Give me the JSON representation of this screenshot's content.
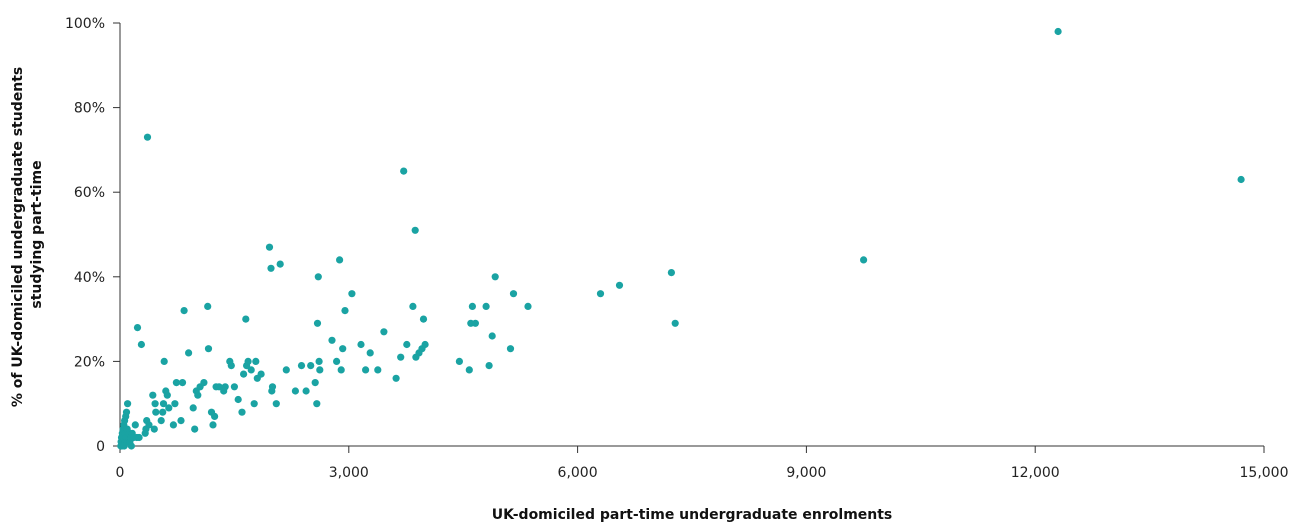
{
  "chart_data": {
    "type": "scatter",
    "title": "",
    "xlabel": "UK-domiciled part-time undergraduate enrolments",
    "ylabel_lines": [
      "% of UK-domiciled undergraduate students",
      "studying part-time"
    ],
    "xlim": [
      0,
      15000
    ],
    "ylim": [
      0,
      100
    ],
    "x_ticks": [
      0,
      3000,
      6000,
      9000,
      12000,
      15000
    ],
    "x_tick_labels": [
      "0",
      "3,000",
      "6,000",
      "9,000",
      "12,000",
      "15,000"
    ],
    "y_ticks": [
      0,
      20,
      40,
      60,
      80,
      100
    ],
    "y_tick_labels": [
      "0",
      "20%",
      "40%",
      "60%",
      "80%",
      "100%"
    ],
    "grid": false,
    "marker_color": "#1aa3a3",
    "series": [
      {
        "points": [
          [
            10,
            0
          ],
          [
            15,
            1
          ],
          [
            20,
            2
          ],
          [
            25,
            0
          ],
          [
            30,
            3
          ],
          [
            35,
            1
          ],
          [
            40,
            4
          ],
          [
            45,
            2
          ],
          [
            50,
            5
          ],
          [
            55,
            0
          ],
          [
            60,
            6
          ],
          [
            65,
            1
          ],
          [
            70,
            3
          ],
          [
            75,
            7
          ],
          [
            80,
            2
          ],
          [
            85,
            8
          ],
          [
            90,
            1
          ],
          [
            95,
            4
          ],
          [
            100,
            10
          ],
          [
            110,
            2
          ],
          [
            120,
            3
          ],
          [
            130,
            1
          ],
          [
            140,
            2
          ],
          [
            150,
            0
          ],
          [
            160,
            3
          ],
          [
            180,
            2
          ],
          [
            200,
            5
          ],
          [
            220,
            2
          ],
          [
            230,
            28
          ],
          [
            250,
            2
          ],
          [
            280,
            24
          ],
          [
            330,
            3
          ],
          [
            340,
            4
          ],
          [
            350,
            6
          ],
          [
            360,
            73
          ],
          [
            380,
            5
          ],
          [
            430,
            12
          ],
          [
            450,
            4
          ],
          [
            460,
            10
          ],
          [
            470,
            8
          ],
          [
            540,
            6
          ],
          [
            560,
            8
          ],
          [
            570,
            10
          ],
          [
            580,
            20
          ],
          [
            600,
            13
          ],
          [
            620,
            12
          ],
          [
            640,
            9
          ],
          [
            700,
            5
          ],
          [
            720,
            10
          ],
          [
            740,
            15
          ],
          [
            800,
            6
          ],
          [
            820,
            15
          ],
          [
            840,
            32
          ],
          [
            900,
            22
          ],
          [
            960,
            9
          ],
          [
            980,
            4
          ],
          [
            1000,
            13
          ],
          [
            1020,
            12
          ],
          [
            1050,
            14
          ],
          [
            1100,
            15
          ],
          [
            1150,
            33
          ],
          [
            1160,
            23
          ],
          [
            1200,
            8
          ],
          [
            1220,
            5
          ],
          [
            1240,
            7
          ],
          [
            1260,
            14
          ],
          [
            1300,
            14
          ],
          [
            1360,
            13
          ],
          [
            1380,
            14
          ],
          [
            1440,
            20
          ],
          [
            1460,
            19
          ],
          [
            1500,
            14
          ],
          [
            1550,
            11
          ],
          [
            1600,
            8
          ],
          [
            1620,
            17
          ],
          [
            1650,
            30
          ],
          [
            1660,
            19
          ],
          [
            1680,
            20
          ],
          [
            1720,
            18
          ],
          [
            1760,
            10
          ],
          [
            1780,
            20
          ],
          [
            1800,
            16
          ],
          [
            1850,
            17
          ],
          [
            1960,
            47
          ],
          [
            1980,
            42
          ],
          [
            1990,
            13
          ],
          [
            2000,
            14
          ],
          [
            2050,
            10
          ],
          [
            2100,
            43
          ],
          [
            2180,
            18
          ],
          [
            2300,
            13
          ],
          [
            2380,
            19
          ],
          [
            2440,
            13
          ],
          [
            2500,
            19
          ],
          [
            2560,
            15
          ],
          [
            2580,
            10
          ],
          [
            2590,
            29
          ],
          [
            2600,
            40
          ],
          [
            2610,
            20
          ],
          [
            2620,
            18
          ],
          [
            2780,
            25
          ],
          [
            2840,
            20
          ],
          [
            2880,
            44
          ],
          [
            2900,
            18
          ],
          [
            2920,
            23
          ],
          [
            2950,
            32
          ],
          [
            3040,
            36
          ],
          [
            3160,
            24
          ],
          [
            3220,
            18
          ],
          [
            3280,
            22
          ],
          [
            3380,
            18
          ],
          [
            3460,
            27
          ],
          [
            3620,
            16
          ],
          [
            3680,
            21
          ],
          [
            3720,
            65
          ],
          [
            3760,
            24
          ],
          [
            3840,
            33
          ],
          [
            3870,
            51
          ],
          [
            3880,
            21
          ],
          [
            3920,
            22
          ],
          [
            3960,
            23
          ],
          [
            3980,
            30
          ],
          [
            4000,
            24
          ],
          [
            4450,
            20
          ],
          [
            4580,
            18
          ],
          [
            4600,
            29
          ],
          [
            4620,
            33
          ],
          [
            4660,
            29
          ],
          [
            4800,
            33
          ],
          [
            4840,
            19
          ],
          [
            4880,
            26
          ],
          [
            4920,
            40
          ],
          [
            5120,
            23
          ],
          [
            5160,
            36
          ],
          [
            5350,
            33
          ],
          [
            6300,
            36
          ],
          [
            6550,
            38
          ],
          [
            7230,
            41
          ],
          [
            7280,
            29
          ],
          [
            9750,
            44
          ],
          [
            12300,
            98
          ],
          [
            14700,
            63
          ]
        ]
      }
    ]
  }
}
